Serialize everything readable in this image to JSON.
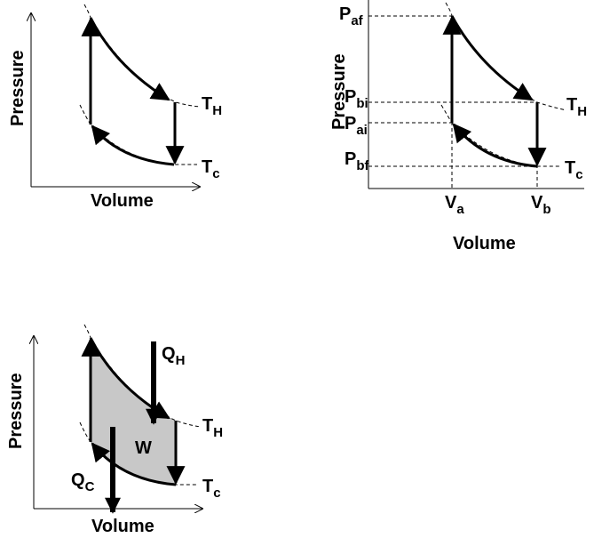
{
  "diagrams": [
    {
      "y_axis": "Pressure",
      "x_axis": "Volume",
      "labels": [
        {
          "main": "T",
          "sub": "H"
        },
        {
          "main": "T",
          "sub": "c"
        }
      ]
    },
    {
      "y_axis": "Pressure",
      "x_axis": "Volume",
      "labels": [
        {
          "main": "T",
          "sub": "H"
        },
        {
          "main": "T",
          "sub": "c"
        },
        {
          "main": "P",
          "sub": "af"
        },
        {
          "main": "P",
          "sub": "bi"
        },
        {
          "main": "P",
          "sub": "ai"
        },
        {
          "main": "P",
          "sub": "bf"
        },
        {
          "main": "V",
          "sub": "a"
        },
        {
          "main": "V",
          "sub": "b"
        }
      ]
    },
    {
      "y_axis": "Pressure",
      "x_axis": "Volume",
      "work": "W",
      "labels": [
        {
          "main": "T",
          "sub": "H"
        },
        {
          "main": "T",
          "sub": "c"
        },
        {
          "main": "Q",
          "sub": "H"
        },
        {
          "main": "Q",
          "sub": "C"
        }
      ]
    }
  ]
}
